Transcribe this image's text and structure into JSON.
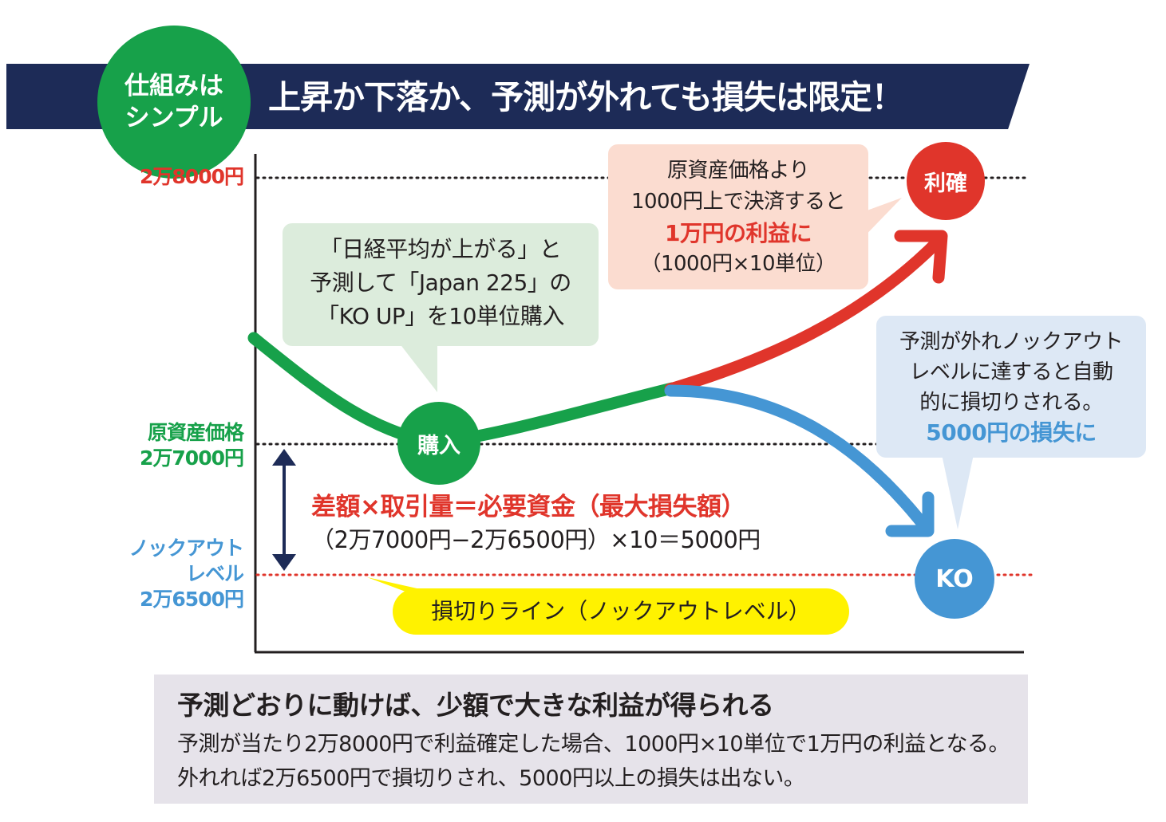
{
  "header": {
    "badge_line1": "仕組みは",
    "badge_line2": "シンプル",
    "title": "上昇か下落か、予測が外れても損失は限定！"
  },
  "y_labels": {
    "upper": "2万8000円",
    "base_line1": "原資産価格",
    "base_line2": "2万7000円",
    "ko_line1": "ノックアウト",
    "ko_line2": "レベル",
    "ko_line3": "2万6500円"
  },
  "callouts": {
    "buy": [
      "「日経平均が上がる」と",
      "予測して「Japan 225」の",
      "「KO UP」を10単位購入"
    ],
    "profit": {
      "line1": "原資産価格より",
      "line2": "1000円上で決済すると",
      "highlight": "1万円の利益に",
      "line4": "（1000円×10単位）"
    },
    "loss": {
      "line1": "予測が外れノックアウト",
      "line2": "レベルに達すると自動",
      "line3": "的に損切りされる。",
      "highlight": "5000円の損失に"
    }
  },
  "markers": {
    "buy": "購入",
    "profit": "利確",
    "ko": "KO"
  },
  "formula": {
    "main": "差額×取引量＝必要資金（最大損失額）",
    "sub": "（2万7000円−2万6500円）×10＝5000円"
  },
  "stop_line": "損切りライン（ノックアウトレベル）",
  "footer": {
    "title": "予測どおりに動けば、少額で大きな利益が得られる",
    "body": "予測が当たり2万8000円で利益確定した場合、1000円×10単位で1万円の利益となる。外れれば2万6500円で損切りされ、5000円以上の損失は出ない。"
  },
  "colors": {
    "navy": "#1d2b57",
    "green": "#17a14a",
    "red": "#e0352b",
    "blue": "#4596d4",
    "yellow": "#fff200",
    "profit_bg": "#fbdcd0",
    "buy_bg": "#dcecdc",
    "loss_bg": "#dde8f5",
    "footer_bg": "#e6e3ea"
  }
}
